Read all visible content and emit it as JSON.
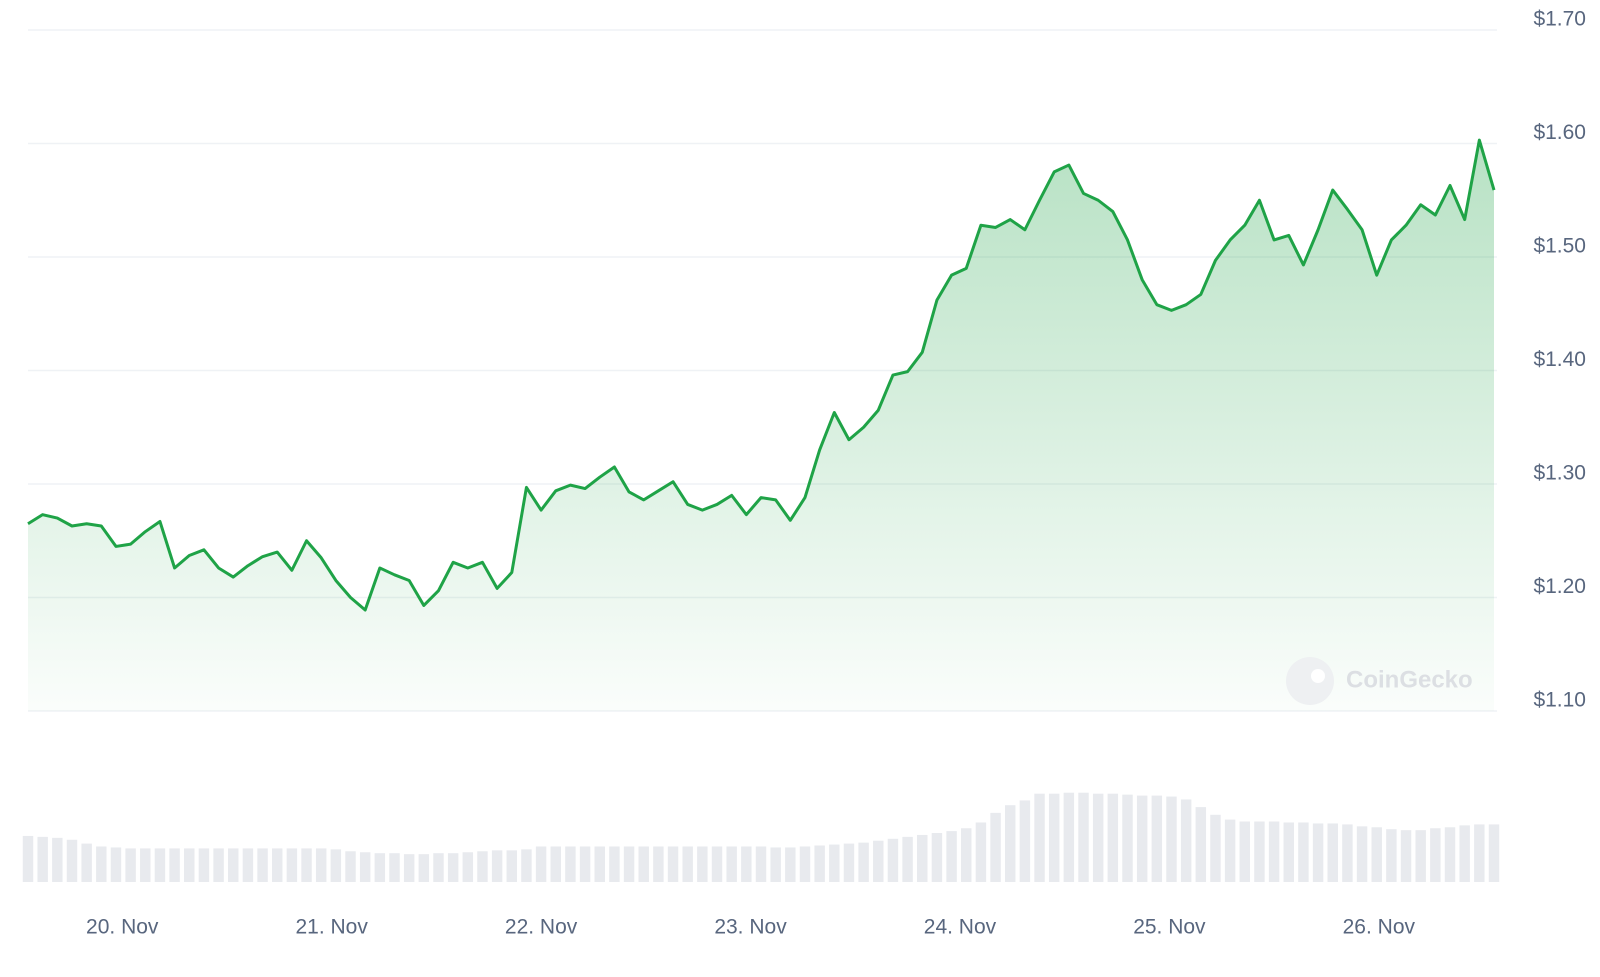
{
  "chart_data": {
    "type": "line",
    "x": [
      19.55,
      19.62,
      19.69,
      19.76,
      19.83,
      19.9,
      19.97,
      20.04,
      20.11,
      20.18,
      20.25,
      20.32,
      20.39,
      20.46,
      20.53,
      20.6,
      20.67,
      20.74,
      20.81,
      20.88,
      20.95,
      21.02,
      21.09,
      21.16,
      21.23,
      21.3,
      21.37,
      21.44,
      21.51,
      21.58,
      21.65,
      21.72,
      21.79,
      21.86,
      21.93,
      22.0,
      22.07,
      22.14,
      22.21,
      22.28,
      22.35,
      22.42,
      22.49,
      22.56,
      22.63,
      22.7,
      22.77,
      22.84,
      22.91,
      22.98,
      23.05,
      23.12,
      23.19,
      23.26,
      23.33,
      23.4,
      23.47,
      23.54,
      23.61,
      23.68,
      23.75,
      23.82,
      23.89,
      23.96,
      24.03,
      24.1,
      24.17,
      24.24,
      24.31,
      24.38,
      24.45,
      24.52,
      24.59,
      24.66,
      24.73,
      24.8,
      24.87,
      24.94,
      25.01,
      25.08,
      25.15,
      25.22,
      25.29,
      25.36,
      25.43,
      25.5,
      25.57,
      25.64,
      25.71,
      25.78,
      25.85,
      25.92,
      25.99,
      26.06,
      26.13,
      26.2,
      26.27,
      26.34,
      26.41,
      26.48,
      26.55
    ],
    "series": [
      {
        "color": "#1fa347",
        "values": [
          1.265,
          1.273,
          1.27,
          1.263,
          1.265,
          1.263,
          1.245,
          1.247,
          1.258,
          1.267,
          1.226,
          1.237,
          1.242,
          1.226,
          1.218,
          1.228,
          1.236,
          1.24,
          1.224,
          1.25,
          1.235,
          1.215,
          1.2,
          1.189,
          1.226,
          1.22,
          1.215,
          1.193,
          1.206,
          1.231,
          1.226,
          1.231,
          1.208,
          1.222,
          1.297,
          1.277,
          1.294,
          1.299,
          1.296,
          1.306,
          1.315,
          1.293,
          1.286,
          1.294,
          1.302,
          1.282,
          1.277,
          1.282,
          1.29,
          1.273,
          1.288,
          1.286,
          1.268,
          1.288,
          1.33,
          1.363,
          1.339,
          1.35,
          1.365,
          1.396,
          1.399,
          1.416,
          1.462,
          1.484,
          1.49,
          1.528,
          1.526,
          1.533,
          1.524,
          1.55,
          1.575,
          1.581,
          1.556,
          1.55,
          1.54,
          1.515,
          1.48,
          1.458,
          1.453,
          1.458,
          1.467,
          1.497,
          1.515,
          1.528,
          1.55,
          1.515,
          1.519,
          1.493,
          1.524,
          1.559,
          1.542,
          1.524,
          1.484,
          1.515,
          1.528,
          1.546,
          1.537,
          1.563,
          1.533,
          1.603,
          1.559
        ]
      },
      {
        "color": "#e8eaee",
        "axis": "y2",
        "values": [
          48,
          47,
          46,
          44,
          40,
          37,
          36,
          35,
          35,
          35,
          35,
          35,
          35,
          35,
          35,
          35,
          35,
          35,
          35,
          35,
          35,
          34,
          32,
          31,
          30,
          30,
          29,
          29,
          30,
          30,
          31,
          32,
          33,
          33,
          34,
          37,
          37,
          37,
          37,
          37,
          37,
          37,
          37,
          37,
          37,
          37,
          37,
          37,
          37,
          37,
          37,
          36,
          36,
          37,
          38,
          39,
          40,
          41,
          43,
          45,
          47,
          49,
          51,
          53,
          56,
          62,
          72,
          80,
          85,
          92,
          92,
          93,
          93,
          92,
          92,
          91,
          90,
          90,
          89,
          86,
          78,
          70,
          65,
          63,
          63,
          63,
          62,
          62,
          61,
          61,
          60,
          58,
          57,
          55,
          54,
          54,
          56,
          57,
          59,
          60,
          60
        ]
      }
    ],
    "xlim": [
      19.55,
      26.55
    ],
    "xticks": [
      {
        "value": 20,
        "label": "20. Nov"
      },
      {
        "value": 21,
        "label": "21. Nov"
      },
      {
        "value": 22,
        "label": "22. Nov"
      },
      {
        "value": 23,
        "label": "23. Nov"
      },
      {
        "value": 24,
        "label": "24. Nov"
      },
      {
        "value": 25,
        "label": "25. Nov"
      },
      {
        "value": 26,
        "label": "26. Nov"
      }
    ],
    "ylim": [
      1.1,
      1.7
    ],
    "yticks": [
      {
        "value": 1.1,
        "label": "$1.10"
      },
      {
        "value": 1.2,
        "label": "$1.20"
      },
      {
        "value": 1.3,
        "label": "$1.30"
      },
      {
        "value": 1.4,
        "label": "$1.40"
      },
      {
        "value": 1.5,
        "label": "$1.50"
      },
      {
        "value": 1.6,
        "label": "$1.60"
      },
      {
        "value": 1.7,
        "label": "$1.70"
      }
    ],
    "y2lim": [
      0,
      100
    ],
    "grid": true,
    "watermark": "CoinGecko"
  }
}
